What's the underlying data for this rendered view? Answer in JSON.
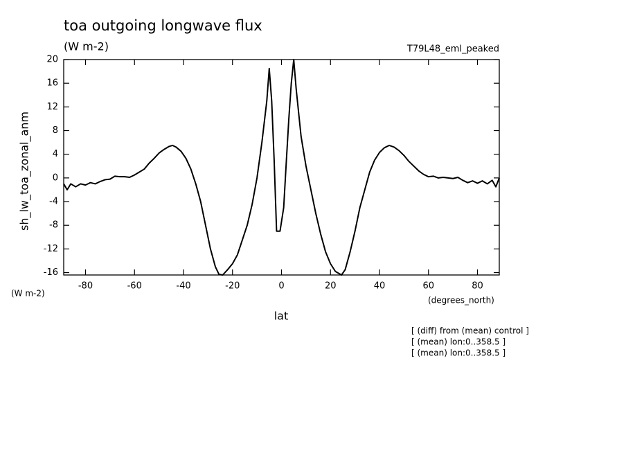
{
  "chart_data": {
    "type": "line",
    "title": "toa outgoing longwave flux",
    "subtitle": "(W m-2)",
    "dataset": "T79L48_eml_peaked",
    "y_label": "sh_lw_toa_zonal_anm",
    "y_units": "(W m-2)",
    "x_units": "(degrees_north)",
    "x_label": "lat",
    "notes": [
      "[ (diff) from (mean) control ]",
      "[ (mean) lon:0..358.5 ]",
      "[ (mean) lon:0..358.5 ]"
    ],
    "xlim": [
      -88.9,
      88.9
    ],
    "ylim": [
      -16.4,
      20
    ],
    "xticks": [
      -80,
      -60,
      -40,
      -20,
      0,
      20,
      40,
      60,
      80
    ],
    "yticks": [
      -16,
      -12,
      -8,
      -4,
      0,
      4,
      8,
      12,
      16,
      20
    ],
    "x": [
      -88.9,
      -87.5,
      -86,
      -84,
      -82,
      -80,
      -78,
      -76,
      -74,
      -72,
      -70,
      -68,
      -66,
      -64,
      -62,
      -60,
      -58,
      -56,
      -54,
      -52,
      -50,
      -48,
      -46,
      -44.5,
      -43,
      -41,
      -39,
      -37,
      -35,
      -33,
      -31,
      -29,
      -27,
      -25.5,
      -24,
      -22,
      -20,
      -18,
      -16,
      -14,
      -12,
      -10,
      -8,
      -6,
      -5,
      -4,
      -3,
      -2,
      -0.6,
      0.9,
      2,
      3,
      4,
      5,
      6,
      8,
      10,
      12,
      14,
      16,
      18,
      20,
      22,
      24.5,
      26,
      28,
      30,
      32,
      34,
      36,
      38,
      40,
      42,
      44,
      46,
      48,
      50,
      52,
      54,
      56,
      58,
      60,
      62,
      64,
      66,
      68,
      70,
      72,
      74,
      76,
      78,
      80,
      82,
      84,
      86,
      87.5,
      88.9
    ],
    "series": [
      {
        "color": "#000000",
        "values": [
          -1,
          -2,
          -1,
          -1.5,
          -1,
          -1.2,
          -0.8,
          -1,
          -0.6,
          -0.3,
          -0.2,
          0.3,
          0.2,
          0.2,
          0.1,
          0.5,
          1,
          1.5,
          2.5,
          3.3,
          4.2,
          4.8,
          5.3,
          5.5,
          5.2,
          4.5,
          3.3,
          1.5,
          -1,
          -4,
          -8,
          -12,
          -15,
          -16.3,
          -16.4,
          -15.5,
          -14.5,
          -13,
          -10.5,
          -8,
          -4.5,
          0,
          6,
          13,
          18.5,
          13,
          3,
          -9,
          -9,
          -5,
          3,
          10,
          16,
          20,
          15,
          7,
          2,
          -2,
          -6,
          -9.5,
          -12.5,
          -14.5,
          -15.8,
          -16.4,
          -15.5,
          -12.5,
          -9,
          -5,
          -2,
          1,
          3,
          4.3,
          5.1,
          5.5,
          5.2,
          4.6,
          3.8,
          2.8,
          2,
          1.2,
          0.6,
          0.2,
          0.3,
          0,
          0.1,
          0,
          -0.1,
          0.1,
          -0.4,
          -0.8,
          -0.5,
          -0.9,
          -0.5,
          -1,
          -0.4,
          -1.5,
          0
        ]
      }
    ]
  }
}
